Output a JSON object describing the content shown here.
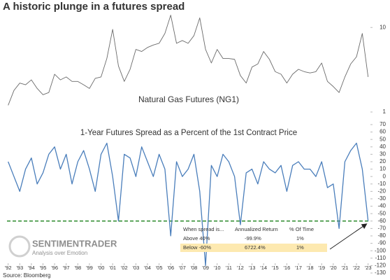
{
  "title": "A historic plunge in a futures spread",
  "source": "Source: Bloomberg",
  "watermark": {
    "brand": "SENTIMENTRADER",
    "tagline": "Analysis over Emotion"
  },
  "chart_data": [
    {
      "type": "line",
      "title": "Natural Gas Futures (NG1)",
      "log_scale": true,
      "xlim": [
        1991.9,
        2023.2
      ],
      "ylim": [
        1,
        15
      ],
      "yticks": [
        1,
        10
      ],
      "x": [
        1992,
        1992.5,
        1993,
        1993.5,
        1994,
        1994.5,
        1995,
        1995.5,
        1996,
        1996.5,
        1997,
        1997.5,
        1998,
        1998.5,
        1999,
        1999.5,
        2000,
        2000.5,
        2001,
        2001.5,
        2002,
        2002.5,
        2003,
        2003.5,
        2004,
        2004.5,
        2005,
        2005.5,
        2006,
        2006.5,
        2007,
        2007.5,
        2008,
        2008.5,
        2009,
        2009.5,
        2010,
        2010.5,
        2011,
        2011.5,
        2012,
        2012.5,
        2013,
        2013.5,
        2014,
        2014.5,
        2015,
        2015.5,
        2016,
        2016.5,
        2017,
        2017.5,
        2018,
        2018.5,
        2019,
        2019.5,
        2020,
        2020.5,
        2021,
        2021.5,
        2022,
        2022.5,
        2023
      ],
      "series": [
        {
          "color": "#6b6b6b",
          "values": [
            1.2,
            1.8,
            2.2,
            2.1,
            2.4,
            1.9,
            1.6,
            1.7,
            2.8,
            2.4,
            2.6,
            2.3,
            2.3,
            2.1,
            1.9,
            2.5,
            2.6,
            4.3,
            9.5,
            3.5,
            2.3,
            3.2,
            5.5,
            5.2,
            5.8,
            6.2,
            6.5,
            8.5,
            14,
            6.5,
            7,
            6.5,
            8,
            13,
            5.5,
            3.8,
            5.5,
            4.3,
            4.3,
            4.2,
            2.7,
            2.2,
            3.4,
            3.7,
            5.2,
            4.2,
            3,
            2.8,
            2.2,
            2.8,
            3.2,
            3,
            2.9,
            3,
            3.8,
            2.3,
            2,
            1.7,
            2.6,
            3.7,
            4.5,
            8.5,
            2.6
          ]
        }
      ]
    },
    {
      "type": "line",
      "title": "1-Year Futures Spread as a Percent of the 1st Contract Price",
      "xlim": [
        1991.9,
        2023.2
      ],
      "ylim": [
        -130,
        70
      ],
      "yticks": [
        70,
        60,
        50,
        40,
        30,
        20,
        10,
        0,
        -10,
        -20,
        -30,
        -40,
        -50,
        -60,
        -70,
        -80,
        -90,
        -100,
        -110,
        -120,
        -130
      ],
      "xticks": [
        {
          "value": 1992,
          "label": "'92"
        },
        {
          "value": 1993,
          "label": "'93"
        },
        {
          "value": 1994,
          "label": "'94"
        },
        {
          "value": 1995,
          "label": "'95"
        },
        {
          "value": 1996,
          "label": "'96"
        },
        {
          "value": 1997,
          "label": "'97"
        },
        {
          "value": 1998,
          "label": "'98"
        },
        {
          "value": 1999,
          "label": "'99"
        },
        {
          "value": 2000,
          "label": "'00"
        },
        {
          "value": 2001,
          "label": "'01"
        },
        {
          "value": 2002,
          "label": "'02"
        },
        {
          "value": 2003,
          "label": "'03"
        },
        {
          "value": 2004,
          "label": "'04"
        },
        {
          "value": 2005,
          "label": "'05"
        },
        {
          "value": 2006,
          "label": "'06"
        },
        {
          "value": 2007,
          "label": "'07"
        },
        {
          "value": 2008,
          "label": "'08"
        },
        {
          "value": 2009,
          "label": "'09"
        },
        {
          "value": 2010,
          "label": "'10"
        },
        {
          "value": 2011,
          "label": "'11"
        },
        {
          "value": 2012,
          "label": "'12"
        },
        {
          "value": 2013,
          "label": "'13"
        },
        {
          "value": 2014,
          "label": "'14"
        },
        {
          "value": 2015,
          "label": "'15"
        },
        {
          "value": 2016,
          "label": "'16"
        },
        {
          "value": 2017,
          "label": "'17"
        },
        {
          "value": 2018,
          "label": "'18"
        },
        {
          "value": 2019,
          "label": "'19"
        },
        {
          "value": 2020,
          "label": "'20"
        },
        {
          "value": 2021,
          "label": "'21"
        },
        {
          "value": 2022,
          "label": "'22"
        },
        {
          "value": 2023,
          "label": "'23"
        }
      ],
      "x": [
        1992,
        1992.5,
        1993,
        1993.5,
        1994,
        1994.5,
        1995,
        1995.5,
        1996,
        1996.5,
        1997,
        1997.5,
        1998,
        1998.5,
        1999,
        1999.5,
        2000,
        2000.5,
        2001,
        2001.5,
        2002,
        2002.5,
        2003,
        2003.5,
        2004,
        2004.5,
        2005,
        2005.5,
        2006,
        2006.5,
        2007,
        2007.5,
        2008,
        2008.5,
        2009,
        2009.5,
        2010,
        2010.5,
        2011,
        2011.5,
        2012,
        2012.5,
        2013,
        2013.5,
        2014,
        2014.5,
        2015,
        2015.5,
        2016,
        2016.5,
        2017,
        2017.5,
        2018,
        2018.5,
        2019,
        2019.5,
        2020,
        2020.5,
        2021,
        2021.5,
        2022,
        2022.5,
        2023
      ],
      "series": [
        {
          "color": "#4a7ebb",
          "values": [
            20,
            0,
            -20,
            10,
            25,
            -10,
            5,
            30,
            40,
            10,
            30,
            -10,
            20,
            35,
            10,
            -20,
            30,
            45,
            0,
            -60,
            30,
            25,
            0,
            40,
            20,
            0,
            30,
            10,
            -80,
            20,
            0,
            10,
            30,
            -20,
            -120,
            15,
            0,
            30,
            20,
            0,
            -65,
            5,
            10,
            -10,
            20,
            10,
            5,
            15,
            -20,
            15,
            20,
            10,
            10,
            0,
            20,
            -15,
            -10,
            -70,
            20,
            35,
            45,
            10,
            -60
          ]
        }
      ],
      "hline": {
        "value": -60,
        "color": "#2e8b2e"
      },
      "table": {
        "header": [
          "When spread is...",
          "Annualized Return",
          "% Of Time"
        ],
        "rows": [
          [
            "Above 40%",
            "-99.9%",
            "1%"
          ],
          [
            "Below -60%",
            "6722.4%",
            "1%"
          ]
        ],
        "highlight_color": "#fde9b0"
      }
    }
  ]
}
